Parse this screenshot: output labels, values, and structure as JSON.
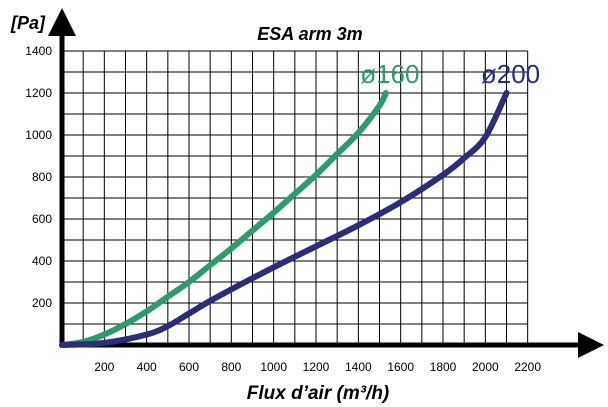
{
  "chart_data": {
    "type": "line",
    "title": "ESA arm 3m",
    "ylabel": "[Pa]",
    "xlabel": "Flux d’air (m³/h)",
    "xlim": [
      0,
      2400
    ],
    "ylim": [
      0,
      1400
    ],
    "xticks": [
      200,
      400,
      600,
      800,
      1000,
      1200,
      1400,
      1600,
      1800,
      2000,
      2200
    ],
    "yticks": [
      200,
      400,
      600,
      800,
      1000,
      1200,
      1400
    ],
    "grid": true,
    "series": [
      {
        "name": "ø160",
        "color": "#2e9b6e",
        "x": [
          0,
          100,
          200,
          300,
          400,
          500,
          600,
          700,
          800,
          900,
          1000,
          1100,
          1200,
          1300,
          1400,
          1500,
          1530
        ],
        "y": [
          0,
          15,
          50,
          100,
          160,
          230,
          300,
          380,
          460,
          545,
          630,
          720,
          810,
          910,
          1010,
          1140,
          1200
        ]
      },
      {
        "name": "ø200",
        "color": "#2a2d7a",
        "x": [
          0,
          200,
          400,
          500,
          600,
          700,
          800,
          1000,
          1200,
          1400,
          1600,
          1800,
          1900,
          2000,
          2100
        ],
        "y": [
          0,
          10,
          50,
          90,
          150,
          210,
          265,
          370,
          470,
          570,
          680,
          810,
          890,
          990,
          1200
        ]
      }
    ]
  }
}
